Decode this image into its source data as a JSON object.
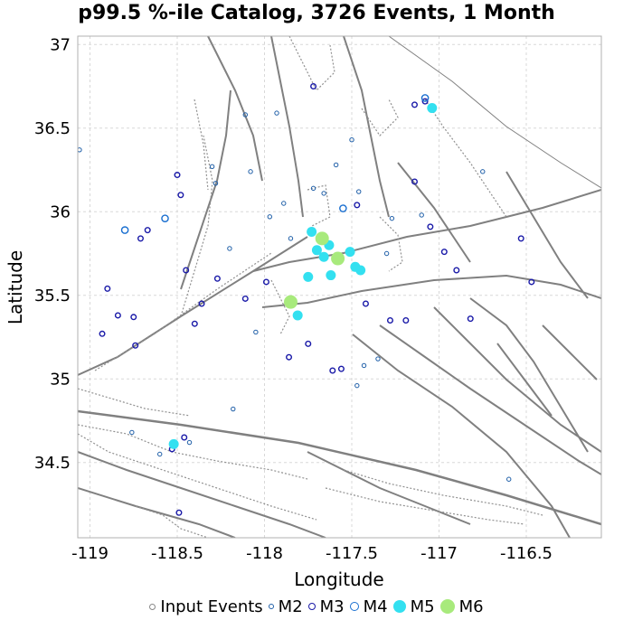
{
  "chart_data": {
    "type": "scatter",
    "title": "p99.5 %-ile Catalog, 3726 Events, 1 Month",
    "xlabel": "Longitude",
    "ylabel": "Latitude",
    "xlim": [
      -119.07,
      -116.07
    ],
    "ylim": [
      34.05,
      37.05
    ],
    "xticks": [
      -119,
      -118.5,
      -118,
      -117.5,
      -117,
      -116.5
    ],
    "xtick_labels": [
      "-119",
      "-118.5",
      "-118",
      "-117.5",
      "-117",
      "-116.5"
    ],
    "yticks": [
      34.5,
      35,
      35.5,
      36,
      36.5,
      37
    ],
    "ytick_labels": [
      "34.5",
      "35",
      "35.5",
      "36",
      "36.5",
      "37"
    ],
    "grid": true,
    "legend_position": "bottom",
    "colors": {
      "faults": "#808080",
      "grid": "#d8d8d8",
      "m2": "#1f5fa8",
      "m3": "#1a1aa8",
      "m4": "#1a6fd0",
      "m5": "#33e0f0",
      "m6": "#a8ea7c"
    },
    "series": [
      {
        "name": "Input Events",
        "marker": "small-gray-circle"
      },
      {
        "name": "M2",
        "marker": "small-open-circle",
        "points": [
          [
            -119.06,
            36.37
          ],
          [
            -118.3,
            36.27
          ],
          [
            -118.28,
            36.17
          ],
          [
            -118.2,
            35.78
          ],
          [
            -118.11,
            36.58
          ],
          [
            -118.08,
            36.24
          ],
          [
            -118.05,
            35.28
          ],
          [
            -117.97,
            35.97
          ],
          [
            -117.93,
            36.59
          ],
          [
            -117.89,
            36.05
          ],
          [
            -117.85,
            35.84
          ],
          [
            -117.72,
            36.14
          ],
          [
            -117.66,
            36.11
          ],
          [
            -117.59,
            36.28
          ],
          [
            -117.5,
            36.43
          ],
          [
            -117.46,
            36.12
          ],
          [
            -117.43,
            35.08
          ],
          [
            -117.35,
            35.12
          ],
          [
            -117.3,
            35.75
          ],
          [
            -117.27,
            35.96
          ],
          [
            -117.1,
            35.98
          ],
          [
            -116.75,
            36.24
          ],
          [
            -116.6,
            34.4
          ],
          [
            -118.76,
            34.68
          ],
          [
            -118.6,
            34.55
          ],
          [
            -118.43,
            34.62
          ],
          [
            -118.18,
            34.82
          ],
          [
            -117.47,
            34.96
          ]
        ]
      },
      {
        "name": "M3",
        "marker": "open-circle",
        "points": [
          [
            -118.93,
            35.27
          ],
          [
            -118.9,
            35.54
          ],
          [
            -118.84,
            35.38
          ],
          [
            -118.75,
            35.37
          ],
          [
            -118.74,
            35.2
          ],
          [
            -118.71,
            35.84
          ],
          [
            -118.67,
            35.89
          ],
          [
            -118.5,
            36.22
          ],
          [
            -118.48,
            36.1
          ],
          [
            -118.45,
            35.65
          ],
          [
            -118.4,
            35.33
          ],
          [
            -118.36,
            35.45
          ],
          [
            -118.27,
            35.6
          ],
          [
            -118.11,
            35.48
          ],
          [
            -117.99,
            35.58
          ],
          [
            -117.86,
            35.13
          ],
          [
            -117.75,
            35.21
          ],
          [
            -117.72,
            36.75
          ],
          [
            -117.61,
            35.05
          ],
          [
            -117.56,
            35.06
          ],
          [
            -117.47,
            36.04
          ],
          [
            -117.42,
            35.45
          ],
          [
            -117.28,
            35.35
          ],
          [
            -117.19,
            35.35
          ],
          [
            -117.14,
            36.18
          ],
          [
            -117.05,
            35.91
          ],
          [
            -116.97,
            35.76
          ],
          [
            -116.9,
            35.65
          ],
          [
            -116.82,
            35.36
          ],
          [
            -116.53,
            35.84
          ],
          [
            -116.47,
            35.58
          ],
          [
            -118.53,
            34.58
          ],
          [
            -118.46,
            34.65
          ],
          [
            -118.49,
            34.2
          ],
          [
            -117.14,
            36.64
          ],
          [
            -117.08,
            36.66
          ]
        ]
      },
      {
        "name": "M4",
        "marker": "open-circle-large",
        "points": [
          [
            -118.8,
            35.89
          ],
          [
            -118.57,
            35.96
          ],
          [
            -117.55,
            36.02
          ],
          [
            -117.08,
            36.68
          ]
        ]
      },
      {
        "name": "M5",
        "marker": "filled-circle",
        "points": [
          [
            -117.73,
            35.88
          ],
          [
            -117.7,
            35.77
          ],
          [
            -117.66,
            35.73
          ],
          [
            -117.63,
            35.8
          ],
          [
            -117.62,
            35.62
          ],
          [
            -117.58,
            35.73
          ],
          [
            -117.48,
            35.67
          ],
          [
            -117.45,
            35.65
          ],
          [
            -117.51,
            35.76
          ],
          [
            -117.75,
            35.61
          ],
          [
            -117.81,
            35.38
          ],
          [
            -117.04,
            36.62
          ],
          [
            -118.52,
            34.61
          ]
        ]
      },
      {
        "name": "M6",
        "marker": "filled-circle-large",
        "points": [
          [
            -117.67,
            35.84
          ],
          [
            -117.58,
            35.72
          ],
          [
            -117.85,
            35.46
          ]
        ]
      }
    ]
  }
}
